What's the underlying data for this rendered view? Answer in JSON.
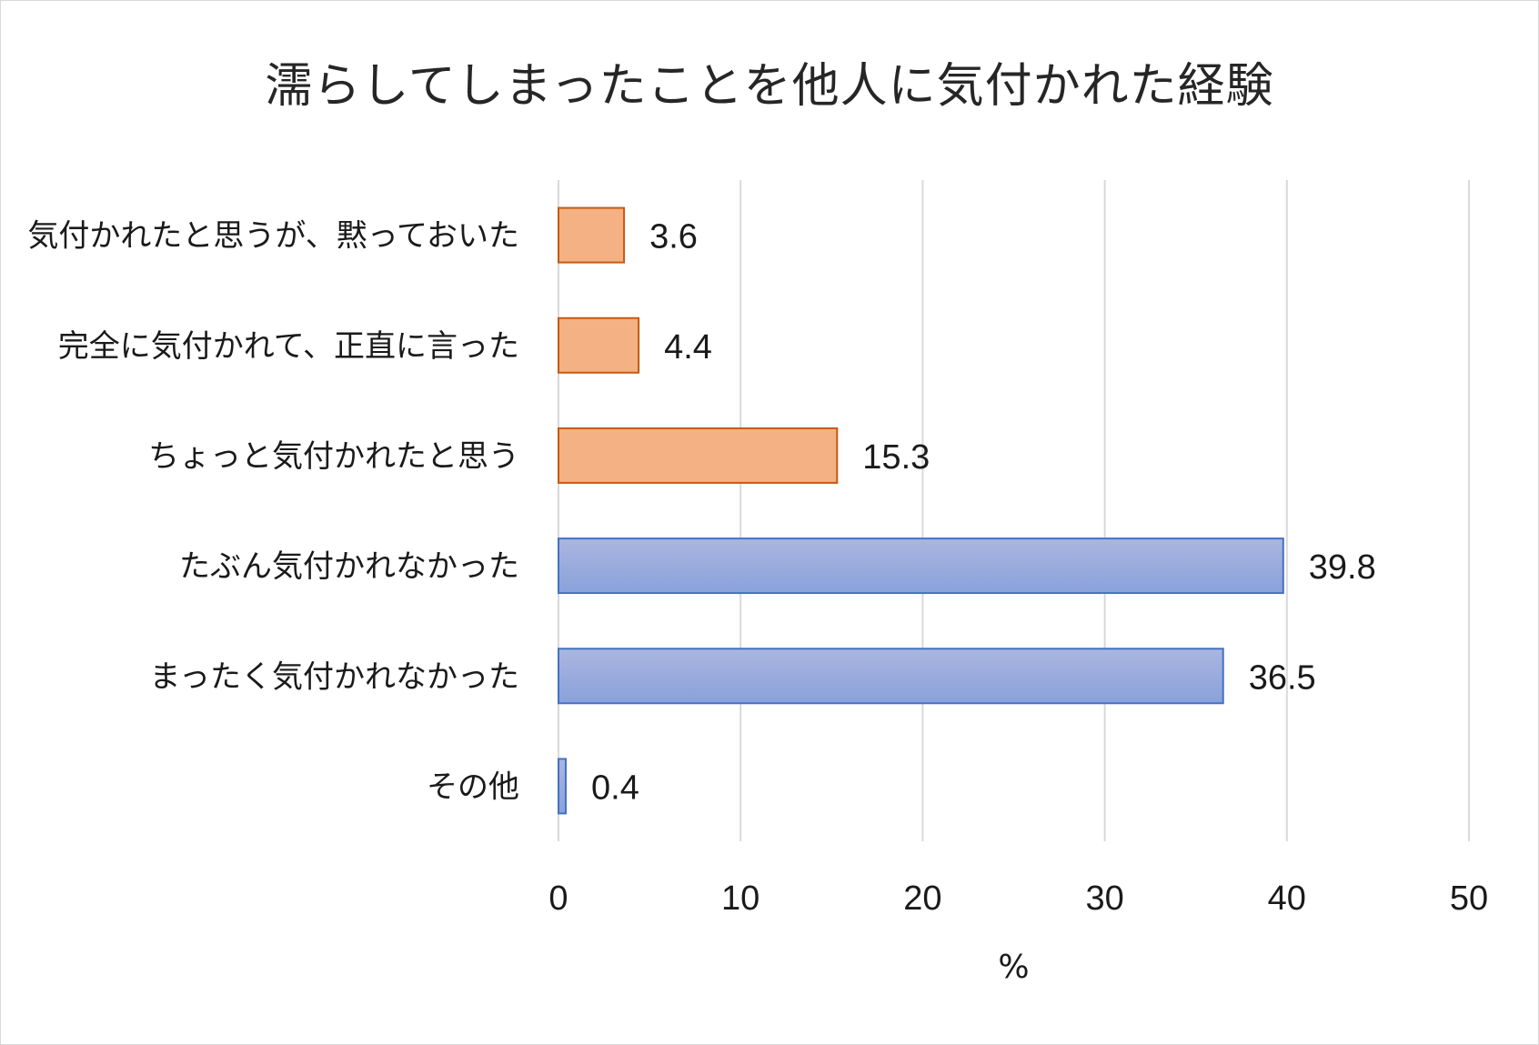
{
  "chart_data": {
    "type": "bar",
    "orientation": "horizontal",
    "title": "濡らしてしまったことを他人に気付かれた経験",
    "xlabel": "%",
    "ylabel": "",
    "xlim": [
      0,
      50
    ],
    "ticks": [
      "0",
      "10",
      "20",
      "30",
      "40",
      "50"
    ],
    "grid": "vertical",
    "legend": "none",
    "categories": [
      "気付かれたと思うが、黙っておいた",
      "完全に気付かれて、正直に言った",
      "ちょっと気付かれたと思う",
      "たぶん気付かれなかった",
      "まったく気付かれなかった",
      "その他"
    ],
    "values": [
      3.6,
      4.4,
      15.3,
      39.8,
      36.5,
      0.4
    ],
    "value_labels": [
      "3.6",
      "4.4",
      "15.3",
      "39.8",
      "36.5",
      "0.4"
    ],
    "bar_groups": [
      "orange",
      "orange",
      "orange",
      "blue",
      "blue",
      "blue"
    ],
    "colors": {
      "orange_fill": "#f4b183",
      "orange_edge": "#c55a11",
      "blue_fill_top": "#aab6e0",
      "blue_fill_bottom": "#8aa1da",
      "blue_edge": "#4472c4",
      "grid": "#d9d9d9"
    }
  }
}
